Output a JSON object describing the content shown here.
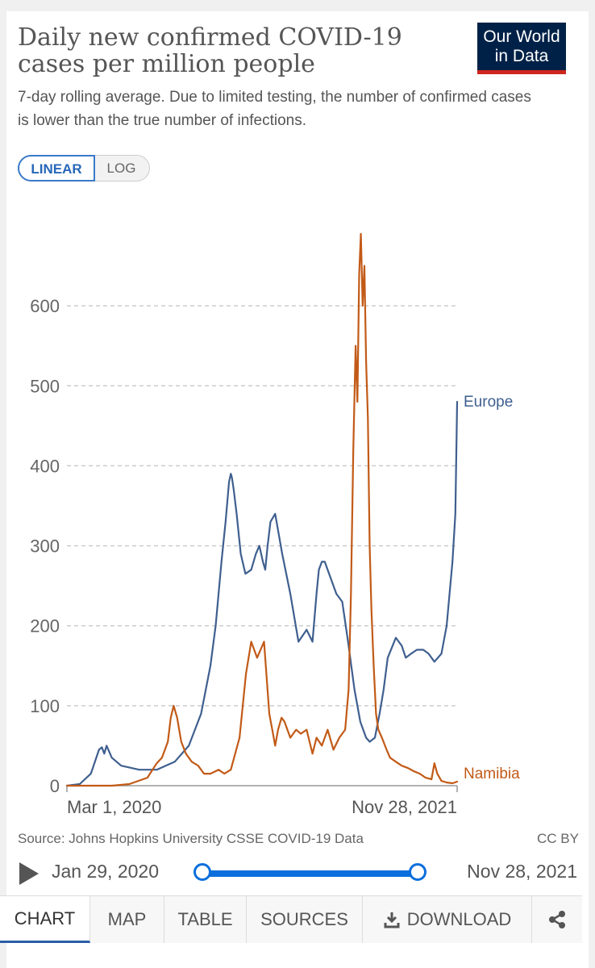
{
  "header": {
    "title": "Daily new confirmed COVID-19 cases per million people",
    "subtitle": "7-day rolling average. Due to limited testing, the number of confirmed cases is lower than the true number of infections.",
    "logo_line1": "Our World",
    "logo_line2": "in Data"
  },
  "scale_toggle": {
    "linear_label": "LINEAR",
    "log_label": "LOG",
    "selected": "LINEAR"
  },
  "colors": {
    "europe": "#3f5f8f",
    "namibia": "#c25a17",
    "grid": "#cccccc",
    "axis_text": "#666666",
    "accent": "#0a6fdc"
  },
  "chart_data": {
    "type": "line",
    "title": "Daily new confirmed COVID-19 cases per million people",
    "x_axis": {
      "start_label": "Mar 1, 2020",
      "end_label": "Nov 28, 2021",
      "range": [
        "2020-01-29",
        "2021-11-28"
      ]
    },
    "ylim": [
      0,
      700
    ],
    "yticks": [
      0,
      100,
      200,
      300,
      400,
      500,
      600
    ],
    "grid": "horizontal dashed",
    "legend": "inline labels at line ends",
    "series": [
      {
        "name": "Europe",
        "label": "Europe",
        "color": "#3f5f8f",
        "dates": [
          "2020-01-29",
          "2020-02-20",
          "2020-03-10",
          "2020-03-24",
          "2020-03-29",
          "2020-04-02",
          "2020-04-06",
          "2020-04-15",
          "2020-05-01",
          "2020-06-01",
          "2020-07-01",
          "2020-08-01",
          "2020-08-25",
          "2020-09-15",
          "2020-10-01",
          "2020-10-10",
          "2020-10-20",
          "2020-10-27",
          "2020-11-02",
          "2020-11-05",
          "2020-11-07",
          "2020-11-10",
          "2020-11-15",
          "2020-11-22",
          "2020-11-30",
          "2020-12-10",
          "2020-12-18",
          "2020-12-24",
          "2020-12-30",
          "2021-01-03",
          "2021-01-07",
          "2021-01-12",
          "2021-01-20",
          "2021-02-01",
          "2021-02-15",
          "2021-03-01",
          "2021-03-15",
          "2021-03-25",
          "2021-04-01",
          "2021-04-05",
          "2021-04-10",
          "2021-04-15",
          "2021-04-25",
          "2021-05-05",
          "2021-05-15",
          "2021-05-25",
          "2021-06-05",
          "2021-06-15",
          "2021-06-25",
          "2021-07-01",
          "2021-07-10",
          "2021-07-18",
          "2021-07-25",
          "2021-08-01",
          "2021-08-15",
          "2021-08-25",
          "2021-09-01",
          "2021-09-10",
          "2021-09-20",
          "2021-10-01",
          "2021-10-10",
          "2021-10-20",
          "2021-11-01",
          "2021-11-10",
          "2021-11-20",
          "2021-11-25",
          "2021-11-28"
        ],
        "values": [
          0,
          2,
          15,
          45,
          48,
          40,
          50,
          35,
          25,
          20,
          20,
          30,
          50,
          90,
          150,
          200,
          280,
          330,
          380,
          390,
          385,
          370,
          340,
          290,
          265,
          270,
          290,
          300,
          280,
          270,
          300,
          330,
          340,
          290,
          240,
          180,
          195,
          180,
          240,
          270,
          280,
          280,
          260,
          240,
          230,
          180,
          120,
          80,
          60,
          55,
          60,
          90,
          120,
          160,
          185,
          175,
          160,
          165,
          170,
          170,
          165,
          155,
          165,
          200,
          280,
          340,
          480
        ]
      },
      {
        "name": "Namibia",
        "label": "Namibia",
        "color": "#c25a17",
        "dates": [
          "2020-01-29",
          "2020-02-15",
          "2020-03-15",
          "2020-04-15",
          "2020-05-15",
          "2020-06-15",
          "2020-07-01",
          "2020-07-10",
          "2020-07-20",
          "2020-07-25",
          "2020-07-30",
          "2020-08-05",
          "2020-08-12",
          "2020-08-20",
          "2020-08-30",
          "2020-09-10",
          "2020-09-20",
          "2020-10-01",
          "2020-10-15",
          "2020-10-25",
          "2020-11-05",
          "2020-11-20",
          "2020-12-01",
          "2020-12-10",
          "2020-12-20",
          "2021-01-01",
          "2021-01-05",
          "2021-01-10",
          "2021-01-15",
          "2021-01-20",
          "2021-01-25",
          "2021-01-31",
          "2021-02-05",
          "2021-02-15",
          "2021-02-25",
          "2021-03-05",
          "2021-03-15",
          "2021-03-25",
          "2021-04-01",
          "2021-04-10",
          "2021-04-20",
          "2021-04-30",
          "2021-05-10",
          "2021-05-20",
          "2021-05-26",
          "2021-05-30",
          "2021-06-03",
          "2021-06-07",
          "2021-06-10",
          "2021-06-13",
          "2021-06-16",
          "2021-06-19",
          "2021-06-22",
          "2021-06-25",
          "2021-06-28",
          "2021-07-01",
          "2021-07-04",
          "2021-07-08",
          "2021-07-12",
          "2021-07-16",
          "2021-07-22",
          "2021-07-30",
          "2021-08-05",
          "2021-08-15",
          "2021-08-25",
          "2021-09-05",
          "2021-09-15",
          "2021-09-25",
          "2021-10-05",
          "2021-10-15",
          "2021-10-20",
          "2021-10-25",
          "2021-11-01",
          "2021-11-10",
          "2021-11-20",
          "2021-11-28"
        ],
        "values": [
          0,
          0,
          0,
          0,
          2,
          10,
          28,
          35,
          55,
          85,
          100,
          85,
          55,
          40,
          30,
          25,
          15,
          15,
          20,
          15,
          20,
          60,
          140,
          180,
          160,
          180,
          140,
          90,
          70,
          50,
          70,
          85,
          80,
          60,
          70,
          65,
          70,
          40,
          60,
          50,
          70,
          45,
          60,
          70,
          120,
          240,
          420,
          550,
          480,
          640,
          690,
          600,
          650,
          530,
          460,
          300,
          220,
          150,
          90,
          70,
          60,
          45,
          35,
          30,
          25,
          22,
          18,
          15,
          10,
          8,
          28,
          15,
          6,
          4,
          3,
          5
        ]
      }
    ]
  },
  "footer": {
    "source": "Source: Johns Hopkins University CSSE COVID-19 Data",
    "license": "CC BY",
    "timeline_start": "Jan 29, 2020",
    "timeline_end": "Nov 28, 2021"
  },
  "tabs": {
    "chart": "CHART",
    "map": "MAP",
    "table": "TABLE",
    "sources": "SOURCES",
    "download": "DOWNLOAD"
  }
}
